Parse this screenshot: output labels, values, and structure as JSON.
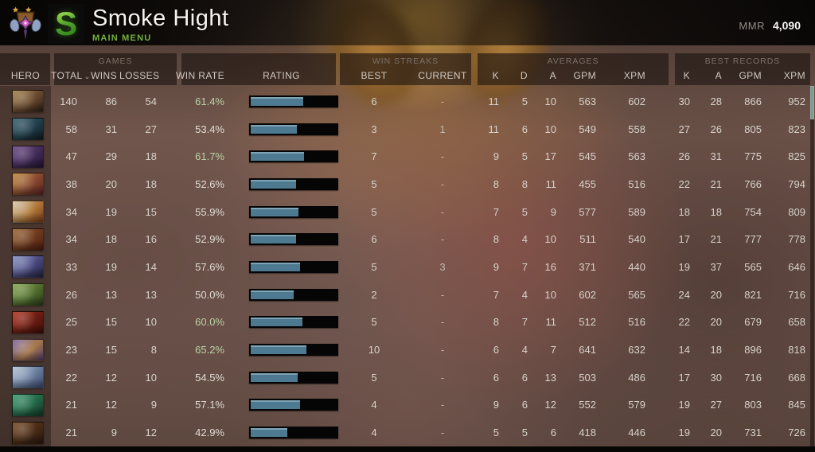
{
  "header": {
    "title": "Smoke Hight",
    "subtitle": "MAIN MENU",
    "logo_letter": "S",
    "mmr_label": "MMR",
    "mmr_value": "4,090",
    "sort_caret": "⌄"
  },
  "table": {
    "groups": {
      "games": "GAMES",
      "win_streaks": "WIN STREAKS",
      "averages": "AVERAGES",
      "best_records": "BEST RECORDS"
    },
    "columns": {
      "hero": "HERO",
      "total": "TOTAL",
      "wins": "WINS",
      "losses": "LOSSES",
      "win_rate": "WIN RATE",
      "rating": "RATING",
      "best": "BEST",
      "current": "CURRENT",
      "k": "K",
      "d": "D",
      "a": "A",
      "gpm": "GPM",
      "xpm": "XPM",
      "rec_k": "K",
      "rec_a": "A",
      "rec_gpm": "GPM",
      "rec_xpm": "XPM"
    },
    "rows": [
      {
        "total": "140",
        "wins": "86",
        "losses": "54",
        "win_rate": "61.4%",
        "green": true,
        "best": "6",
        "current": "-",
        "k": "11",
        "d": "5",
        "a": "10",
        "gpm": "563",
        "xpm": "602",
        "rec_k": "30",
        "rec_a": "28",
        "rec_gpm": "866",
        "rec_xpm": "952",
        "icon": [
          "#a5834c",
          "#6b4a2e",
          "#2e2018"
        ]
      },
      {
        "total": "58",
        "wins": "31",
        "losses": "27",
        "win_rate": "53.4%",
        "green": false,
        "best": "3",
        "current": "1",
        "k": "11",
        "d": "6",
        "a": "10",
        "gpm": "549",
        "xpm": "558",
        "rec_k": "27",
        "rec_a": "26",
        "rec_gpm": "805",
        "rec_xpm": "823",
        "icon": [
          "#3a616e",
          "#22404c",
          "#101c22"
        ]
      },
      {
        "total": "47",
        "wins": "29",
        "losses": "18",
        "win_rate": "61.7%",
        "green": true,
        "best": "7",
        "current": "-",
        "k": "9",
        "d": "5",
        "a": "17",
        "gpm": "545",
        "xpm": "563",
        "rec_k": "26",
        "rec_a": "31",
        "rec_gpm": "775",
        "rec_xpm": "825",
        "icon": [
          "#6b4a85",
          "#452d5c",
          "#241433"
        ]
      },
      {
        "total": "38",
        "wins": "20",
        "losses": "18",
        "win_rate": "52.6%",
        "green": false,
        "best": "5",
        "current": "-",
        "k": "8",
        "d": "8",
        "a": "11",
        "gpm": "455",
        "xpm": "516",
        "rec_k": "22",
        "rec_a": "21",
        "rec_gpm": "766",
        "rec_xpm": "794",
        "icon": [
          "#c08a3a",
          "#8a4a30",
          "#5a2420"
        ]
      },
      {
        "total": "34",
        "wins": "19",
        "losses": "15",
        "win_rate": "55.9%",
        "green": false,
        "best": "5",
        "current": "-",
        "k": "7",
        "d": "5",
        "a": "9",
        "gpm": "577",
        "xpm": "589",
        "rec_k": "18",
        "rec_a": "18",
        "rec_gpm": "754",
        "rec_xpm": "809",
        "icon": [
          "#d6cab2",
          "#b07838",
          "#7a3c1a"
        ]
      },
      {
        "total": "34",
        "wins": "18",
        "losses": "16",
        "win_rate": "52.9%",
        "green": false,
        "best": "6",
        "current": "-",
        "k": "8",
        "d": "4",
        "a": "10",
        "gpm": "511",
        "xpm": "540",
        "rec_k": "17",
        "rec_a": "21",
        "rec_gpm": "777",
        "rec_xpm": "778",
        "icon": [
          "#9c6a3a",
          "#6e3a1e",
          "#501c10"
        ]
      },
      {
        "total": "33",
        "wins": "19",
        "losses": "14",
        "win_rate": "57.6%",
        "green": false,
        "best": "5",
        "current": "3",
        "k": "9",
        "d": "7",
        "a": "16",
        "gpm": "371",
        "xpm": "440",
        "rec_k": "19",
        "rec_a": "37",
        "rec_gpm": "565",
        "rec_xpm": "646",
        "icon": [
          "#8a93c4",
          "#4a4a80",
          "#23233f"
        ]
      },
      {
        "total": "26",
        "wins": "13",
        "losses": "13",
        "win_rate": "50.0%",
        "green": false,
        "best": "2",
        "current": "-",
        "k": "7",
        "d": "4",
        "a": "10",
        "gpm": "602",
        "xpm": "565",
        "rec_k": "24",
        "rec_a": "20",
        "rec_gpm": "821",
        "rec_xpm": "716",
        "icon": [
          "#8aa856",
          "#52702e",
          "#2e3d1c"
        ]
      },
      {
        "total": "25",
        "wins": "15",
        "losses": "10",
        "win_rate": "60.0%",
        "green": true,
        "best": "5",
        "current": "-",
        "k": "8",
        "d": "7",
        "a": "11",
        "gpm": "512",
        "xpm": "516",
        "rec_k": "22",
        "rec_a": "20",
        "rec_gpm": "679",
        "rec_xpm": "658",
        "icon": [
          "#b03a24",
          "#6e1c12",
          "#401008"
        ]
      },
      {
        "total": "23",
        "wins": "15",
        "losses": "8",
        "win_rate": "65.2%",
        "green": true,
        "best": "10",
        "current": "-",
        "k": "6",
        "d": "4",
        "a": "7",
        "gpm": "641",
        "xpm": "632",
        "rec_k": "14",
        "rec_a": "18",
        "rec_gpm": "896",
        "rec_xpm": "818",
        "icon": [
          "#7a68a8",
          "#a87848",
          "#4e3a66"
        ]
      },
      {
        "total": "22",
        "wins": "12",
        "losses": "10",
        "win_rate": "54.5%",
        "green": false,
        "best": "5",
        "current": "-",
        "k": "6",
        "d": "6",
        "a": "13",
        "gpm": "503",
        "xpm": "486",
        "rec_k": "17",
        "rec_a": "30",
        "rec_gpm": "716",
        "rec_xpm": "668",
        "icon": [
          "#b4c4d8",
          "#6a7ea0",
          "#3c4a6e"
        ]
      },
      {
        "total": "21",
        "wins": "12",
        "losses": "9",
        "win_rate": "57.1%",
        "green": false,
        "best": "4",
        "current": "-",
        "k": "9",
        "d": "6",
        "a": "12",
        "gpm": "552",
        "xpm": "579",
        "rec_k": "19",
        "rec_a": "27",
        "rec_gpm": "803",
        "rec_xpm": "845",
        "icon": [
          "#3f9a70",
          "#246a4a",
          "#153826"
        ]
      },
      {
        "total": "21",
        "wins": "9",
        "losses": "12",
        "win_rate": "42.9%",
        "green": false,
        "best": "4",
        "current": "-",
        "k": "5",
        "d": "5",
        "a": "6",
        "gpm": "418",
        "xpm": "446",
        "rec_k": "19",
        "rec_a": "20",
        "rec_gpm": "731",
        "rec_xpm": "726",
        "icon": [
          "#7a4e28",
          "#4a2c16",
          "#2c190e"
        ]
      }
    ]
  },
  "colors": {
    "accent_green": "#73b23c",
    "winrate_green": "#b9d2a6",
    "bar_fill": "#4d7a91",
    "bar_bg": "#050505",
    "scroll_thumb": "#7e9b93"
  }
}
